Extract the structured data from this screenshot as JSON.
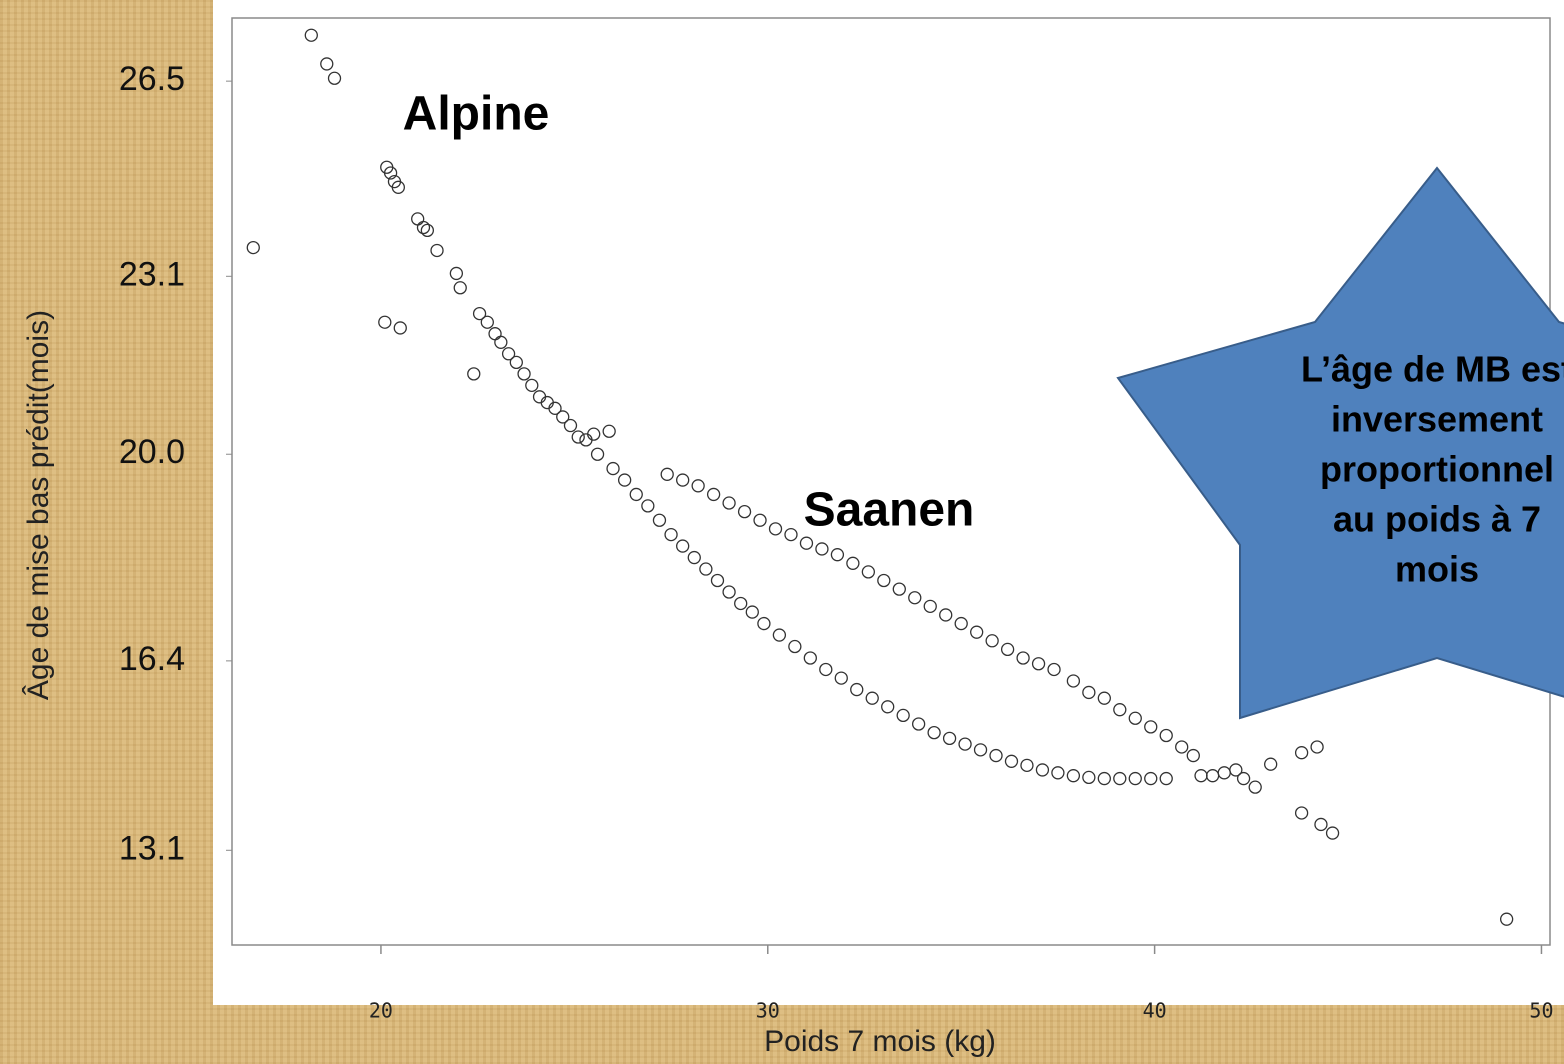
{
  "chart_data": {
    "type": "scatter",
    "ylabel": "Âge de mise bas prédit(mois)",
    "xlabel": "Poids 7 mois (kg)",
    "annotations": [
      "Alpine",
      "Saanen"
    ],
    "star_text": [
      "L’âge de MB est",
      "inversement",
      "proportionnel",
      "au poids à 7",
      "mois"
    ],
    "color": "#333333",
    "xlim": [
      16.15,
      50.35
    ],
    "ylim": [
      11.45,
      27.6
    ],
    "xticks": [
      20,
      30,
      40,
      50
    ],
    "yticks": [
      26.5,
      23.1,
      {
        "value": 20,
        "label": "20.0"
      },
      16.4,
      13.1
    ],
    "x": [
      20.15,
      20.25,
      20.35,
      20.45,
      20.95,
      21.1,
      21.2,
      21.45,
      21.95,
      22.05,
      22.55,
      22.75,
      22.95,
      23.1,
      23.3,
      23.5,
      23.7,
      23.9,
      24.1,
      24.3,
      24.5,
      24.7,
      24.9,
      25.1,
      25.3,
      25.5,
      25.9,
      25.6,
      26.0,
      26.3,
      26.6,
      26.9,
      27.2,
      27.5,
      27.8,
      28.1,
      28.4,
      28.7,
      29.0,
      29.3,
      29.6,
      29.9,
      30.3,
      30.7,
      31.1,
      31.5,
      31.9,
      32.3,
      32.7,
      33.1,
      33.5,
      33.9,
      34.3,
      34.7,
      35.1,
      35.5,
      35.9,
      36.3,
      36.7,
      37.1,
      37.5,
      37.9,
      38.3,
      38.7,
      39.1,
      39.5,
      39.9,
      40.3,
      27.4,
      27.8,
      28.2,
      28.6,
      29.0,
      29.4,
      29.8,
      30.2,
      30.6,
      31.0,
      31.4,
      31.8,
      32.2,
      32.6,
      33.0,
      33.4,
      33.8,
      34.2,
      34.6,
      35.0,
      35.4,
      35.8,
      36.2,
      36.6,
      37.0,
      37.4,
      37.9,
      38.3,
      38.7,
      39.1,
      39.5,
      39.9,
      40.3,
      40.7,
      41.0,
      16.7,
      18.2,
      18.6,
      18.8,
      20.1,
      20.5,
      22.4,
      41.2,
      41.5,
      41.8,
      42.1,
      42.3,
      42.6,
      43.0,
      43.8,
      44.2,
      43.8,
      44.3,
      44.6,
      49.1
    ],
    "values": [
      25.0,
      24.9,
      24.75,
      24.65,
      24.1,
      23.95,
      23.9,
      23.55,
      23.15,
      22.9,
      22.45,
      22.3,
      22.1,
      21.95,
      21.75,
      21.6,
      21.4,
      21.2,
      21.0,
      20.9,
      20.8,
      20.65,
      20.5,
      20.3,
      20.25,
      20.35,
      20.4,
      20.0,
      19.75,
      19.55,
      19.3,
      19.1,
      18.85,
      18.6,
      18.4,
      18.2,
      18.0,
      17.8,
      17.6,
      17.4,
      17.25,
      17.05,
      16.85,
      16.65,
      16.45,
      16.25,
      16.1,
      15.9,
      15.75,
      15.6,
      15.45,
      15.3,
      15.15,
      15.05,
      14.95,
      14.85,
      14.75,
      14.65,
      14.58,
      14.5,
      14.45,
      14.4,
      14.37,
      14.35,
      14.35,
      14.35,
      14.35,
      14.35,
      19.65,
      19.55,
      19.45,
      19.3,
      19.15,
      19.0,
      18.85,
      18.7,
      18.6,
      18.45,
      18.35,
      18.25,
      18.1,
      17.95,
      17.8,
      17.65,
      17.5,
      17.35,
      17.2,
      17.05,
      16.9,
      16.75,
      16.6,
      16.45,
      16.35,
      16.25,
      16.05,
      15.85,
      15.75,
      15.55,
      15.4,
      15.25,
      15.1,
      14.9,
      14.75,
      23.6,
      27.3,
      26.8,
      26.55,
      22.3,
      22.2,
      21.4,
      14.4,
      14.4,
      14.45,
      14.5,
      14.35,
      14.2,
      14.6,
      14.8,
      14.9,
      13.75,
      13.55,
      13.4,
      11.9
    ]
  }
}
